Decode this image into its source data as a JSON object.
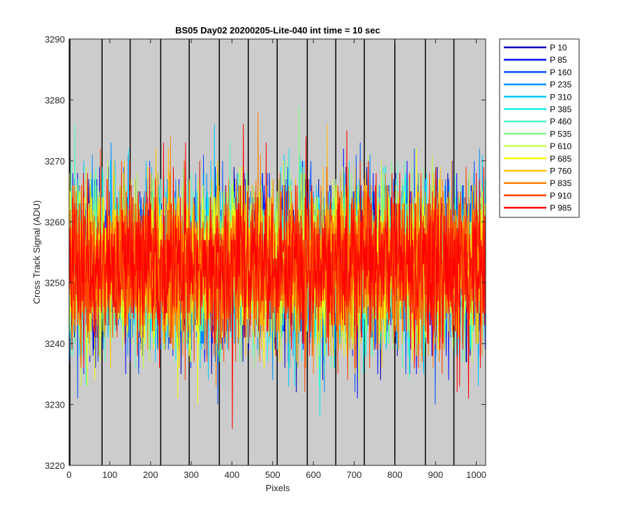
{
  "chart_data": {
    "type": "line",
    "title": "BS05 Day02 20200205-Lite-040 int time = 10 sec",
    "xlabel": "Pixels",
    "ylabel": "Cross Track Signal (ADU)",
    "xlim": [
      0,
      1023
    ],
    "ylim": [
      3220,
      3290
    ],
    "xticks": [
      0,
      100,
      200,
      300,
      400,
      500,
      600,
      700,
      800,
      900,
      1000
    ],
    "yticks": [
      3220,
      3230,
      3240,
      3250,
      3260,
      3270,
      3280,
      3290
    ],
    "vertical_lines": [
      2,
      81,
      150,
      225,
      295,
      369,
      440,
      511,
      585,
      655,
      725,
      800,
      875,
      945
    ],
    "plot_background": "#cccccc",
    "legend_position": "outside-top-right",
    "noise_model": {
      "mean": 3253,
      "std": 6.5,
      "points_per_series": 1023
    },
    "series": [
      {
        "name": "P 10",
        "color": "#0000b4"
      },
      {
        "name": "P 85",
        "color": "#0010ff"
      },
      {
        "name": "P 160",
        "color": "#0050ff"
      },
      {
        "name": "P 235",
        "color": "#0090ff"
      },
      {
        "name": "P 310",
        "color": "#00c8ff"
      },
      {
        "name": "P 385",
        "color": "#10f0f0"
      },
      {
        "name": "P 460",
        "color": "#50ffc0"
      },
      {
        "name": "P 535",
        "color": "#80ff80"
      },
      {
        "name": "P 610",
        "color": "#c0ff40"
      },
      {
        "name": "P 685",
        "color": "#ffff00"
      },
      {
        "name": "P 760",
        "color": "#ffc000"
      },
      {
        "name": "P 835",
        "color": "#ff8000"
      },
      {
        "name": "P 910",
        "color": "#ff4000"
      },
      {
        "name": "P 985",
        "color": "#ff0000"
      }
    ]
  }
}
